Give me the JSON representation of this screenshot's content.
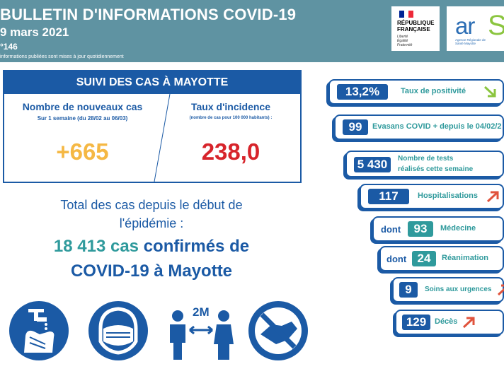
{
  "header": {
    "title": "BULLETIN D'INFORMATIONS COVID-19",
    "date": "9 mars 2021",
    "number": "°146",
    "note": "informations publiées sont mises à jour quotidiennement"
  },
  "logos": {
    "republique": {
      "line1": "RÉPUBLIQUE",
      "line2": "FRANÇAISE",
      "motto1": "Liberté",
      "motto2": "Égalité",
      "motto3": "Fraternité"
    },
    "ars": {
      "text": "ar",
      "text2": "S",
      "subtitle": "Agence Régionale de Santé Mayotte"
    }
  },
  "cases": {
    "title": "SUIVI DES CAS À MAYOTTE",
    "new_cases": {
      "label": "Nombre de nouveaux cas",
      "period": "Sur 1 semaine (du 28/02 au 06/03)",
      "value": "+665"
    },
    "incidence": {
      "label": "Taux d'incidence",
      "unit": "(nombre de cas pour 100 000 habitants) :",
      "value": "238,0"
    }
  },
  "total": {
    "line1": "Total des cas depuis le début de",
    "line2": "l'épidémie :",
    "count": "18 413 cas",
    "confirmed": "confirmés de",
    "line4": "COVID-19 à Mayotte"
  },
  "icons": [
    "wash-hands-icon",
    "mask-icon",
    "distance-2m-icon",
    "no-handshake-icon"
  ],
  "icon_labels": {
    "distance": "2M"
  },
  "stats": {
    "positivity": {
      "value": "13,2%",
      "label": "Taux de positivité",
      "trend": "down"
    },
    "evasans": {
      "value": "99",
      "label": "Evasans COVID + depuis le 04/02/2"
    },
    "tests": {
      "value": "5 430",
      "label1": "Nombre de tests",
      "label2": "réalisés cette semaine"
    },
    "hospital": {
      "value": "117",
      "label": "Hospitalisations",
      "trend": "up"
    },
    "medecine": {
      "prefix": "dont",
      "value": "93",
      "label": "Médecine"
    },
    "reanimation": {
      "prefix": "dont",
      "value": "24",
      "label": "Réanimation"
    },
    "urgences": {
      "value": "9",
      "label": "Soins aux urgences",
      "trend": "up"
    },
    "deces": {
      "value": "129",
      "label": "Décès",
      "trend": "up"
    }
  },
  "colors": {
    "blue": "#1b5aa5",
    "teal": "#2f9a9c",
    "header": "#5f93a2",
    "yellow": "#f5b844",
    "red": "#d7242b",
    "arrow_red": "#e0533c",
    "arrow_green": "#8bc53f"
  }
}
